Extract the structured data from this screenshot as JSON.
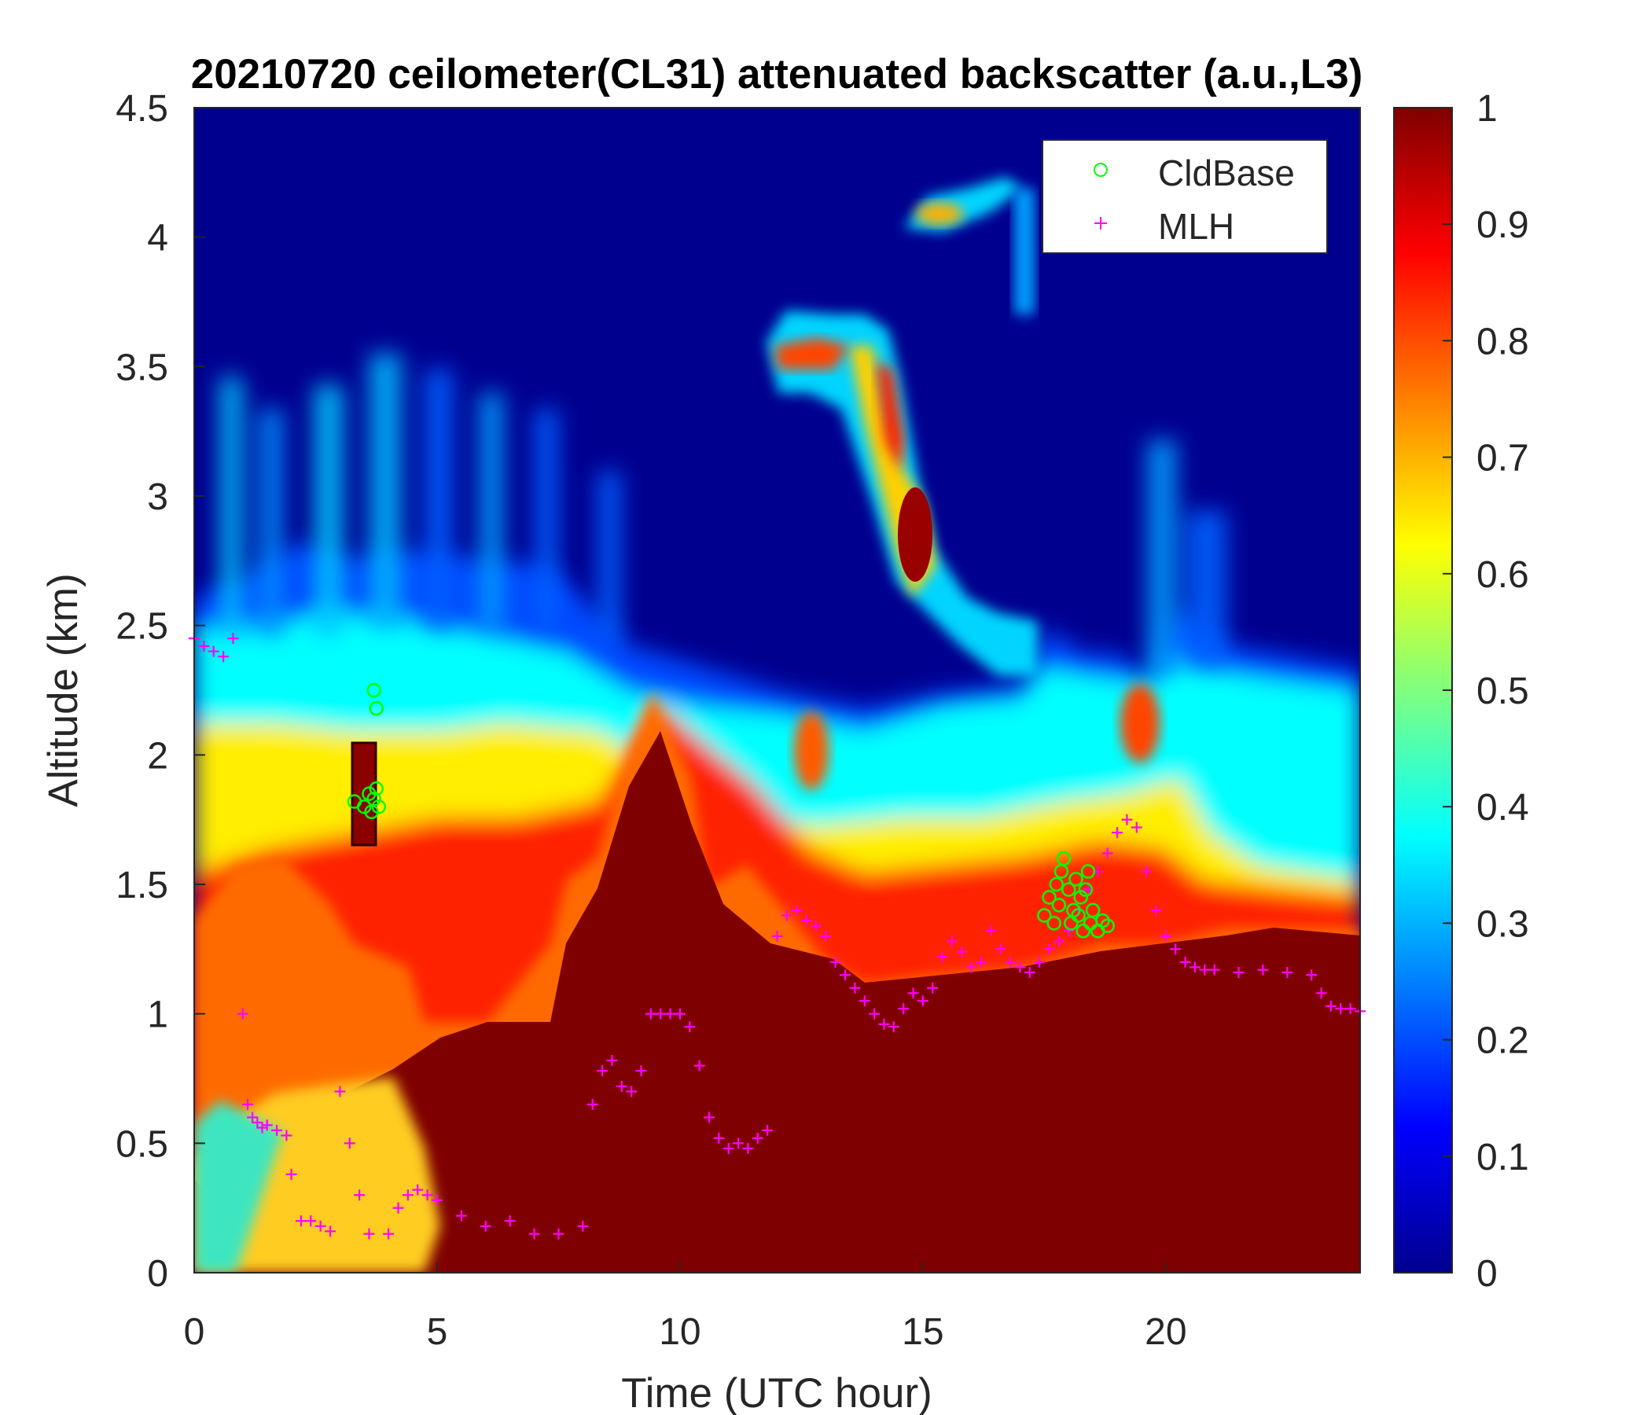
{
  "chart_data": {
    "type": "heatmap",
    "title": "20210720 ceilometer(CL31) attenuated backscatter (a.u.,L3)",
    "xlabel": "Time (UTC hour)",
    "ylabel": "Altitude (km)",
    "xlim": [
      0,
      24
    ],
    "ylim": [
      0,
      4.5
    ],
    "xticks": [
      "0",
      "5",
      "10",
      "15",
      "20"
    ],
    "xtick_values": [
      0,
      5,
      10,
      15,
      20
    ],
    "yticks": [
      "0",
      "0.5",
      "1",
      "1.5",
      "2",
      "2.5",
      "3",
      "3.5",
      "4",
      "4.5"
    ],
    "ytick_values": [
      0,
      0.5,
      1,
      1.5,
      2,
      2.5,
      3,
      3.5,
      4,
      4.5
    ],
    "colorbar": {
      "colormap": "jet",
      "clim": [
        0,
        1
      ],
      "ticks": [
        "0",
        "0.1",
        "0.2",
        "0.3",
        "0.4",
        "0.5",
        "0.6",
        "0.7",
        "0.8",
        "0.9",
        "1"
      ],
      "tick_values": [
        0,
        0.1,
        0.2,
        0.3,
        0.4,
        0.5,
        0.6,
        0.7,
        0.8,
        0.9,
        1
      ]
    },
    "legend": {
      "placement": "top-right",
      "entries": [
        {
          "name": "CldBase",
          "marker": "circle",
          "color": "#00ff00"
        },
        {
          "name": "MLH",
          "marker": "plus",
          "color": "#ff00ff"
        }
      ]
    },
    "series": [
      {
        "name": "MLH",
        "marker": "plus",
        "color": "#ff00ff",
        "x": [
          0.0,
          0.2,
          0.4,
          0.6,
          0.8,
          1.0,
          1.1,
          1.2,
          1.3,
          1.4,
          1.5,
          1.7,
          1.9,
          2.0,
          2.2,
          2.4,
          2.6,
          2.8,
          3.0,
          3.2,
          3.4,
          3.6,
          4.0,
          4.2,
          4.4,
          4.6,
          4.8,
          5.0,
          5.5,
          6.0,
          6.5,
          7.0,
          7.5,
          8.0,
          8.2,
          8.4,
          8.6,
          8.8,
          9.0,
          9.2,
          9.4,
          9.6,
          9.8,
          10.0,
          10.2,
          10.4,
          10.6,
          10.8,
          11.0,
          11.2,
          11.4,
          11.6,
          11.8,
          12.0,
          12.2,
          12.4,
          12.6,
          12.8,
          13.0,
          13.2,
          13.4,
          13.6,
          13.8,
          14.0,
          14.2,
          14.4,
          14.6,
          14.8,
          15.0,
          15.2,
          15.4,
          15.6,
          15.8,
          16.0,
          16.2,
          16.4,
          16.6,
          16.8,
          17.0,
          17.2,
          17.4,
          17.6,
          17.8,
          18.0,
          18.2,
          18.4,
          18.6,
          18.8,
          19.0,
          19.2,
          19.4,
          19.6,
          19.8,
          20.0,
          20.2,
          20.4,
          20.6,
          20.8,
          21.0,
          21.5,
          22.0,
          22.5,
          23.0,
          23.2,
          23.4,
          23.6,
          23.8,
          24.0
        ],
        "y": [
          2.45,
          2.42,
          2.4,
          2.38,
          2.45,
          1.0,
          0.65,
          0.6,
          0.58,
          0.56,
          0.57,
          0.55,
          0.53,
          0.38,
          0.2,
          0.2,
          0.18,
          0.16,
          0.7,
          0.5,
          0.3,
          0.15,
          0.15,
          0.25,
          0.3,
          0.32,
          0.3,
          0.28,
          0.22,
          0.18,
          0.2,
          0.15,
          0.15,
          0.18,
          0.65,
          0.78,
          0.82,
          0.72,
          0.7,
          0.78,
          1.0,
          1.0,
          1.0,
          1.0,
          0.95,
          0.8,
          0.6,
          0.52,
          0.48,
          0.5,
          0.48,
          0.52,
          0.55,
          1.3,
          1.38,
          1.4,
          1.36,
          1.34,
          1.3,
          1.2,
          1.15,
          1.1,
          1.05,
          1.0,
          0.96,
          0.95,
          1.02,
          1.08,
          1.05,
          1.1,
          1.22,
          1.28,
          1.24,
          1.18,
          1.2,
          1.32,
          1.25,
          1.2,
          1.18,
          1.16,
          1.2,
          1.25,
          1.28,
          1.32,
          1.4,
          1.48,
          1.55,
          1.62,
          1.7,
          1.75,
          1.72,
          1.55,
          1.4,
          1.3,
          1.25,
          1.2,
          1.18,
          1.17,
          1.17,
          1.16,
          1.17,
          1.16,
          1.15,
          1.08,
          1.03,
          1.02,
          1.02,
          1.01
        ]
      },
      {
        "name": "CldBase",
        "marker": "circle",
        "color": "#00ff00",
        "x": [
          3.3,
          3.5,
          3.6,
          3.65,
          3.7,
          3.75,
          3.8,
          3.7,
          3.75,
          17.5,
          17.6,
          17.7,
          17.75,
          17.8,
          17.85,
          17.9,
          18.0,
          18.05,
          18.1,
          18.15,
          18.2,
          18.25,
          18.3,
          18.35,
          18.4,
          18.45,
          18.5,
          18.6,
          18.7,
          18.8
        ],
        "y": [
          1.82,
          1.8,
          1.85,
          1.78,
          1.83,
          1.87,
          1.8,
          2.25,
          2.18,
          1.38,
          1.45,
          1.35,
          1.5,
          1.42,
          1.55,
          1.6,
          1.48,
          1.35,
          1.4,
          1.52,
          1.38,
          1.45,
          1.32,
          1.48,
          1.55,
          1.35,
          1.4,
          1.32,
          1.36,
          1.34
        ]
      }
    ]
  }
}
